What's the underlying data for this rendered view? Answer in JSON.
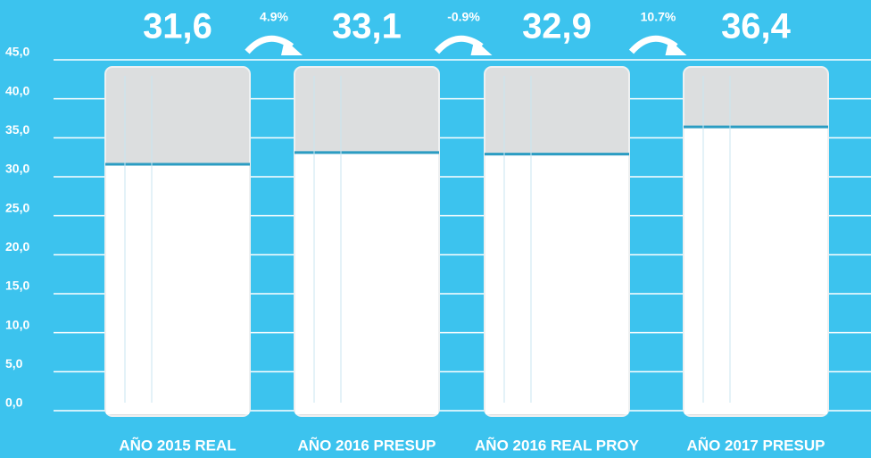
{
  "chart_data": {
    "type": "bar",
    "categories": [
      "AÑO 2015 REAL",
      "AÑO 2016 PRESUP",
      "AÑO 2016 REAL PROY",
      "AÑO 2017 PRESUP"
    ],
    "values": [
      31.6,
      33.1,
      32.9,
      36.4
    ],
    "value_labels": [
      "31,6",
      "33,1",
      "32,9",
      "36,4"
    ],
    "annotations": [
      "4.9%",
      "-0.9%",
      "10.7%"
    ],
    "color": "#ffffff",
    "ylim": [
      0,
      45
    ],
    "yticks": [
      {
        "value": 0,
        "label": "0,0"
      },
      {
        "value": 5,
        "label": "5,0"
      },
      {
        "value": 10,
        "label": "10,0"
      },
      {
        "value": 15,
        "label": "15,0"
      },
      {
        "value": 20,
        "label": "20,0"
      },
      {
        "value": 25,
        "label": "25,0"
      },
      {
        "value": 30,
        "label": "30,0"
      },
      {
        "value": 35,
        "label": "35,0"
      },
      {
        "value": 40,
        "label": "40,0"
      },
      {
        "value": 45,
        "label": "45,0"
      }
    ],
    "grid": true
  }
}
